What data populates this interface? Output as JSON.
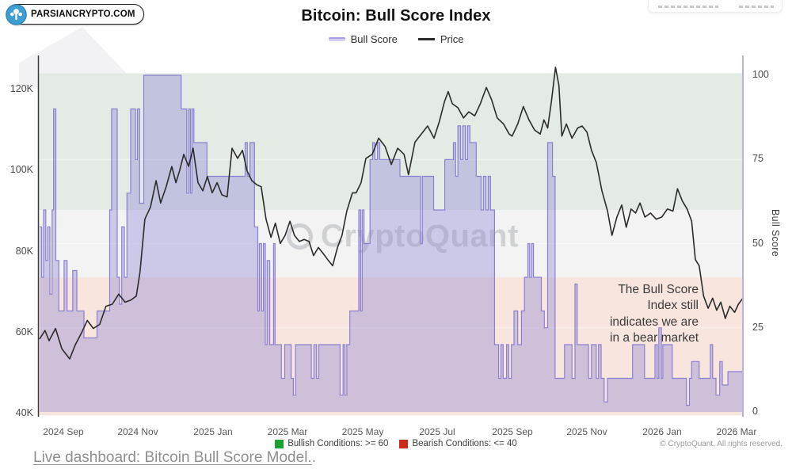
{
  "branding": {
    "badge_text": "PARSIANCRYPTO.COM",
    "badge_icon": "parsiancrypto-logo",
    "badge_icon_color": "#3d9ed3"
  },
  "header": {
    "title": "Bitcoin: Bull Score Index",
    "legend": [
      {
        "label": "Bull Score",
        "color": "#a79ddf"
      },
      {
        "label": "Price",
        "color": "#2b2b2b"
      }
    ]
  },
  "chart_data": {
    "type": "line",
    "title": "Bitcoin: Bull Score Index",
    "x_unit": "months since 2024-08-01",
    "x_domain": [
      0.365,
      19.17
    ],
    "x_ticks": [
      {
        "m": 1,
        "label": "2024 Sep"
      },
      {
        "m": 3,
        "label": "2024 Nov"
      },
      {
        "m": 5,
        "label": "2025 Jan"
      },
      {
        "m": 7,
        "label": "2025 Mar"
      },
      {
        "m": 9,
        "label": "2025 May"
      },
      {
        "m": 11,
        "label": "2025 Jul"
      },
      {
        "m": 13,
        "label": "2025 Sep"
      },
      {
        "m": 15,
        "label": "2025 Nov"
      },
      {
        "m": 17,
        "label": "2026 Jan"
      },
      {
        "m": 19,
        "label": "2026 Mar"
      }
    ],
    "left_axis": {
      "unit": "USD",
      "ticks": [
        {
          "v": 120,
          "label": "120K"
        },
        {
          "v": 100,
          "label": "100K"
        },
        {
          "v": 80,
          "label": "80K"
        },
        {
          "v": 60,
          "label": "60K"
        },
        {
          "v": 40,
          "label": "40K"
        }
      ]
    },
    "right_axis": {
      "title": "Bull Score",
      "range": [
        0,
        100
      ],
      "ticks": [
        {
          "v": 100,
          "label": "100"
        },
        {
          "v": 75,
          "label": "75"
        },
        {
          "v": 50,
          "label": "50"
        },
        {
          "v": 25,
          "label": "25"
        },
        {
          "v": 0,
          "label": "0"
        }
      ]
    },
    "bands": [
      {
        "name": "bullish-zone",
        "score_range": [
          60,
          100.6
        ],
        "color": "#e3ebe4"
      },
      {
        "name": "neutral-zone",
        "score_range": [
          40,
          60
        ],
        "color": "#f2f3f2"
      },
      {
        "name": "bearish-zone",
        "score_range": [
          -1,
          40
        ],
        "color": "#f7e5de"
      }
    ],
    "series": [
      {
        "name": "Bull Score",
        "axis": "right",
        "style": "step-area",
        "color": "#8a80d2",
        "fill": "rgba(141,131,212,0.38)",
        "points": [
          [
            0.37,
            55
          ],
          [
            0.42,
            40
          ],
          [
            0.47,
            60
          ],
          [
            0.53,
            45
          ],
          [
            0.58,
            55
          ],
          [
            0.64,
            35
          ],
          [
            0.7,
            60
          ],
          [
            0.74,
            90
          ],
          [
            0.8,
            45
          ],
          [
            0.88,
            30
          ],
          [
            1.02,
            45
          ],
          [
            1.1,
            30
          ],
          [
            1.25,
            42
          ],
          [
            1.36,
            30
          ],
          [
            1.55,
            22
          ],
          [
            1.9,
            30
          ],
          [
            2.24,
            60
          ],
          [
            2.29,
            90
          ],
          [
            2.44,
            40
          ],
          [
            2.5,
            32
          ],
          [
            2.56,
            55
          ],
          [
            2.63,
            40
          ],
          [
            2.7,
            65
          ],
          [
            2.8,
            90
          ],
          [
            2.93,
            75
          ],
          [
            2.98,
            90
          ],
          [
            3.04,
            62
          ],
          [
            3.15,
            100
          ],
          [
            4.15,
            90
          ],
          [
            4.3,
            65
          ],
          [
            4.35,
            90
          ],
          [
            4.4,
            65
          ],
          [
            4.44,
            90
          ],
          [
            4.49,
            80
          ],
          [
            4.84,
            70
          ],
          [
            5.86,
            80
          ],
          [
            5.92,
            70
          ],
          [
            5.99,
            80
          ],
          [
            6.11,
            55
          ],
          [
            6.2,
            30
          ],
          [
            6.24,
            50
          ],
          [
            6.3,
            30
          ],
          [
            6.35,
            50
          ],
          [
            6.4,
            20
          ],
          [
            6.45,
            45
          ],
          [
            6.52,
            20
          ],
          [
            6.62,
            50
          ],
          [
            6.66,
            20
          ],
          [
            6.83,
            10
          ],
          [
            6.92,
            20
          ],
          [
            7.09,
            10
          ],
          [
            7.15,
            5
          ],
          [
            7.21,
            20
          ],
          [
            7.63,
            10
          ],
          [
            7.7,
            20
          ],
          [
            7.77,
            10
          ],
          [
            7.83,
            20
          ],
          [
            8.35,
            20
          ],
          [
            8.4,
            5
          ],
          [
            8.48,
            20
          ],
          [
            8.53,
            5
          ],
          [
            8.58,
            20
          ],
          [
            8.66,
            30
          ],
          [
            8.9,
            60
          ],
          [
            8.95,
            30
          ],
          [
            8.99,
            60
          ],
          [
            9.04,
            50
          ],
          [
            9.2,
            75
          ],
          [
            9.27,
            80
          ],
          [
            9.33,
            75
          ],
          [
            9.4,
            80
          ],
          [
            9.46,
            75
          ],
          [
            10.0,
            70
          ],
          [
            10.55,
            50
          ],
          [
            10.6,
            70
          ],
          [
            10.9,
            60
          ],
          [
            11.2,
            75
          ],
          [
            11.43,
            80
          ],
          [
            11.49,
            70
          ],
          [
            11.55,
            85
          ],
          [
            11.62,
            75
          ],
          [
            11.68,
            85
          ],
          [
            11.75,
            75
          ],
          [
            11.81,
            85
          ],
          [
            11.87,
            80
          ],
          [
            12.04,
            70
          ],
          [
            12.17,
            60
          ],
          [
            12.23,
            70
          ],
          [
            12.3,
            60
          ],
          [
            12.36,
            70
          ],
          [
            12.42,
            60
          ],
          [
            12.53,
            20
          ],
          [
            12.64,
            10
          ],
          [
            12.7,
            20
          ],
          [
            12.76,
            10
          ],
          [
            12.85,
            20
          ],
          [
            12.91,
            10
          ],
          [
            12.98,
            20
          ],
          [
            13.05,
            30
          ],
          [
            13.15,
            20
          ],
          [
            13.25,
            30
          ],
          [
            13.33,
            40
          ],
          [
            13.42,
            50
          ],
          [
            13.47,
            40
          ],
          [
            13.52,
            50
          ],
          [
            13.57,
            40
          ],
          [
            13.78,
            30
          ],
          [
            13.86,
            25
          ],
          [
            13.95,
            80
          ],
          [
            14.08,
            70
          ],
          [
            14.15,
            10
          ],
          [
            14.4,
            20
          ],
          [
            14.6,
            10
          ],
          [
            14.68,
            38
          ],
          [
            14.74,
            20
          ],
          [
            14.95,
            20
          ],
          [
            15.04,
            10
          ],
          [
            15.12,
            20
          ],
          [
            15.25,
            10
          ],
          [
            15.31,
            20
          ],
          [
            15.38,
            10
          ],
          [
            15.46,
            3
          ],
          [
            15.55,
            10
          ],
          [
            16.22,
            20
          ],
          [
            16.54,
            10
          ],
          [
            16.82,
            20
          ],
          [
            16.88,
            10
          ],
          [
            16.92,
            25
          ],
          [
            16.99,
            10
          ],
          [
            17.03,
            20
          ],
          [
            17.28,
            10
          ],
          [
            17.66,
            2
          ],
          [
            17.74,
            10
          ],
          [
            17.8,
            15
          ],
          [
            18.0,
            10
          ],
          [
            18.3,
            20
          ],
          [
            18.36,
            10
          ],
          [
            18.45,
            5
          ],
          [
            18.55,
            15
          ],
          [
            18.62,
            8
          ],
          [
            18.77,
            12
          ],
          [
            19.17,
            12
          ]
        ]
      },
      {
        "name": "Price",
        "axis": "left",
        "style": "line",
        "color": "#2b2b2b",
        "unit": "K USD",
        "points": [
          [
            0.37,
            58.5
          ],
          [
            0.51,
            60.5
          ],
          [
            0.62,
            58
          ],
          [
            0.79,
            61
          ],
          [
            0.96,
            56
          ],
          [
            1.17,
            53.5
          ],
          [
            1.32,
            57
          ],
          [
            1.49,
            60
          ],
          [
            1.64,
            63
          ],
          [
            1.8,
            61
          ],
          [
            1.97,
            62
          ],
          [
            2.14,
            66.5
          ],
          [
            2.31,
            67
          ],
          [
            2.48,
            69.5
          ],
          [
            2.65,
            67.5
          ],
          [
            2.8,
            68
          ],
          [
            2.95,
            69
          ],
          [
            3.05,
            75
          ],
          [
            3.18,
            88
          ],
          [
            3.33,
            91
          ],
          [
            3.48,
            97.5
          ],
          [
            3.6,
            92
          ],
          [
            3.75,
            96
          ],
          [
            3.9,
            101
          ],
          [
            4.01,
            97
          ],
          [
            4.11,
            100
          ],
          [
            4.22,
            104
          ],
          [
            4.35,
            101
          ],
          [
            4.47,
            105.5
          ],
          [
            4.6,
            97
          ],
          [
            4.73,
            95
          ],
          [
            4.85,
            98.5
          ],
          [
            4.98,
            94.5
          ],
          [
            5.11,
            97
          ],
          [
            5.24,
            94
          ],
          [
            5.38,
            93.5
          ],
          [
            5.51,
            105.5
          ],
          [
            5.66,
            103
          ],
          [
            5.79,
            105
          ],
          [
            5.91,
            100
          ],
          [
            6.04,
            97.5
          ],
          [
            6.17,
            96.5
          ],
          [
            6.29,
            96
          ],
          [
            6.42,
            88
          ],
          [
            6.55,
            83.5
          ],
          [
            6.67,
            87
          ],
          [
            6.8,
            82
          ],
          [
            6.93,
            84
          ],
          [
            7.06,
            87.5
          ],
          [
            7.18,
            84
          ],
          [
            7.31,
            82.5
          ],
          [
            7.44,
            83
          ],
          [
            7.57,
            82.5
          ],
          [
            7.69,
            79
          ],
          [
            7.82,
            81
          ],
          [
            7.95,
            79.5
          ],
          [
            8.07,
            78
          ],
          [
            8.2,
            76.5
          ],
          [
            8.33,
            81
          ],
          [
            8.45,
            84
          ],
          [
            8.58,
            90
          ],
          [
            8.73,
            94.5
          ],
          [
            8.83,
            94.5
          ],
          [
            8.96,
            97
          ],
          [
            9.09,
            103
          ],
          [
            9.26,
            104
          ],
          [
            9.43,
            108
          ],
          [
            9.6,
            106
          ],
          [
            9.77,
            101.5
          ],
          [
            9.94,
            105.5
          ],
          [
            10.11,
            104
          ],
          [
            10.23,
            99
          ],
          [
            10.4,
            107
          ],
          [
            10.57,
            109
          ],
          [
            10.74,
            111
          ],
          [
            10.91,
            108
          ],
          [
            11.05,
            112
          ],
          [
            11.19,
            117
          ],
          [
            11.29,
            119.5
          ],
          [
            11.4,
            116.5
          ],
          [
            11.55,
            115.5
          ],
          [
            11.7,
            113
          ],
          [
            11.84,
            114.5
          ],
          [
            12.0,
            113.5
          ],
          [
            12.15,
            116.5
          ],
          [
            12.31,
            120.5
          ],
          [
            12.45,
            117.5
          ],
          [
            12.6,
            113
          ],
          [
            12.77,
            111.5
          ],
          [
            12.92,
            109
          ],
          [
            13.0,
            108.5
          ],
          [
            13.15,
            111.5
          ],
          [
            13.3,
            115.8
          ],
          [
            13.45,
            112.5
          ],
          [
            13.6,
            110
          ],
          [
            13.75,
            109
          ],
          [
            13.85,
            112.5
          ],
          [
            13.95,
            110.5
          ],
          [
            14.05,
            117
          ],
          [
            14.16,
            125.5
          ],
          [
            14.25,
            121
          ],
          [
            14.33,
            108.5
          ],
          [
            14.45,
            111.5
          ],
          [
            14.6,
            108
          ],
          [
            14.75,
            110.5
          ],
          [
            14.87,
            111
          ],
          [
            15.0,
            109.5
          ],
          [
            15.12,
            105
          ],
          [
            15.25,
            102
          ],
          [
            15.4,
            95
          ],
          [
            15.55,
            90
          ],
          [
            15.67,
            84
          ],
          [
            15.8,
            88.5
          ],
          [
            15.93,
            91.5
          ],
          [
            16.05,
            86
          ],
          [
            16.18,
            90.5
          ],
          [
            16.3,
            89.5
          ],
          [
            16.42,
            92
          ],
          [
            16.55,
            88.5
          ],
          [
            16.7,
            89.5
          ],
          [
            16.85,
            88
          ],
          [
            17.0,
            88.5
          ],
          [
            17.15,
            90.5
          ],
          [
            17.3,
            90
          ],
          [
            17.42,
            95.5
          ],
          [
            17.55,
            92.5
          ],
          [
            17.68,
            90.5
          ],
          [
            17.8,
            87.5
          ],
          [
            17.9,
            78
          ],
          [
            18.0,
            76.5
          ],
          [
            18.12,
            69
          ],
          [
            18.24,
            66
          ],
          [
            18.36,
            68.5
          ],
          [
            18.47,
            65.5
          ],
          [
            18.58,
            67.5
          ],
          [
            18.7,
            63.5
          ],
          [
            18.82,
            66.5
          ],
          [
            18.95,
            65
          ],
          [
            19.05,
            67
          ],
          [
            19.17,
            68.5
          ]
        ]
      }
    ],
    "watermark": "CryptoQuant",
    "annotation": "The Bull Score\nIndex still\nindicates we are\nin a bear market"
  },
  "footer": {
    "legend": [
      {
        "label": "Bullish Conditions: >= 60",
        "color": "#19a22d"
      },
      {
        "label": "Bearish Conditions: <= 40",
        "color": "#cd2a1e"
      }
    ],
    "copyright": "© CryptoQuant. All rights reserved.",
    "link": "Live dashboard: Bitcoin Bull Score Model.",
    "link_suffix": "."
  }
}
